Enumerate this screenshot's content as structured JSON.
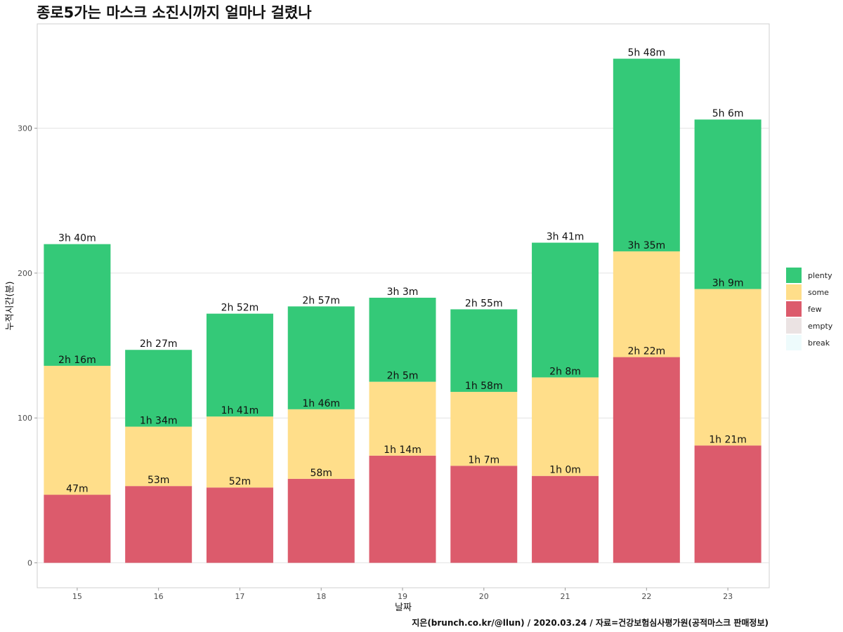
{
  "chart_data": {
    "type": "bar",
    "stacked": true,
    "title": "종로5가는 마스크 소진시까지 얼마나 걸렸나",
    "xlabel": "날짜",
    "ylabel": "누적시간(분)",
    "caption": "지은(brunch.co.kr/@llun) / 2020.03.24 / 자료=건강보험심사평가원(공적마스크 판매정보)",
    "categories": [
      "15",
      "16",
      "17",
      "18",
      "19",
      "20",
      "21",
      "22",
      "23"
    ],
    "yticks": [
      "0",
      "100",
      "200",
      "300"
    ],
    "ylim": [
      -17,
      370
    ],
    "grid": true,
    "legend_position": "right",
    "series": [
      {
        "name": "few",
        "color": "#DC5B6C",
        "values": [
          47,
          53,
          52,
          58,
          74,
          67,
          60,
          142,
          81
        ],
        "labels": [
          "47m",
          "53m",
          "52m",
          "58m",
          "1h 14m",
          "1h 7m",
          "1h 0m",
          "2h 22m",
          "1h 21m"
        ]
      },
      {
        "name": "some",
        "color": "#FFDE8A",
        "values": [
          89,
          41,
          49,
          48,
          51,
          51,
          68,
          73,
          108
        ],
        "labels": [
          "2h 16m",
          "1h 34m",
          "1h 41m",
          "1h 46m",
          "2h 5m",
          "1h 58m",
          "2h 8m",
          "3h 35m",
          "3h 9m"
        ]
      },
      {
        "name": "plenty",
        "color": "#34C978",
        "values": [
          84,
          53,
          71,
          71,
          58,
          57,
          93,
          133,
          117
        ],
        "labels": [
          "3h 40m",
          "2h 27m",
          "2h 52m",
          "2h 57m",
          "3h 3m",
          "2h 55m",
          "3h 41m",
          "5h 48m",
          "5h 6m"
        ]
      }
    ],
    "legend": [
      {
        "name": "plenty",
        "color": "#34C978"
      },
      {
        "name": "some",
        "color": "#FFDE8A"
      },
      {
        "name": "few",
        "color": "#DC5B6C"
      },
      {
        "name": "empty",
        "color": "#EBE3E3"
      },
      {
        "name": "break",
        "color": "#EEFBFC"
      }
    ]
  }
}
